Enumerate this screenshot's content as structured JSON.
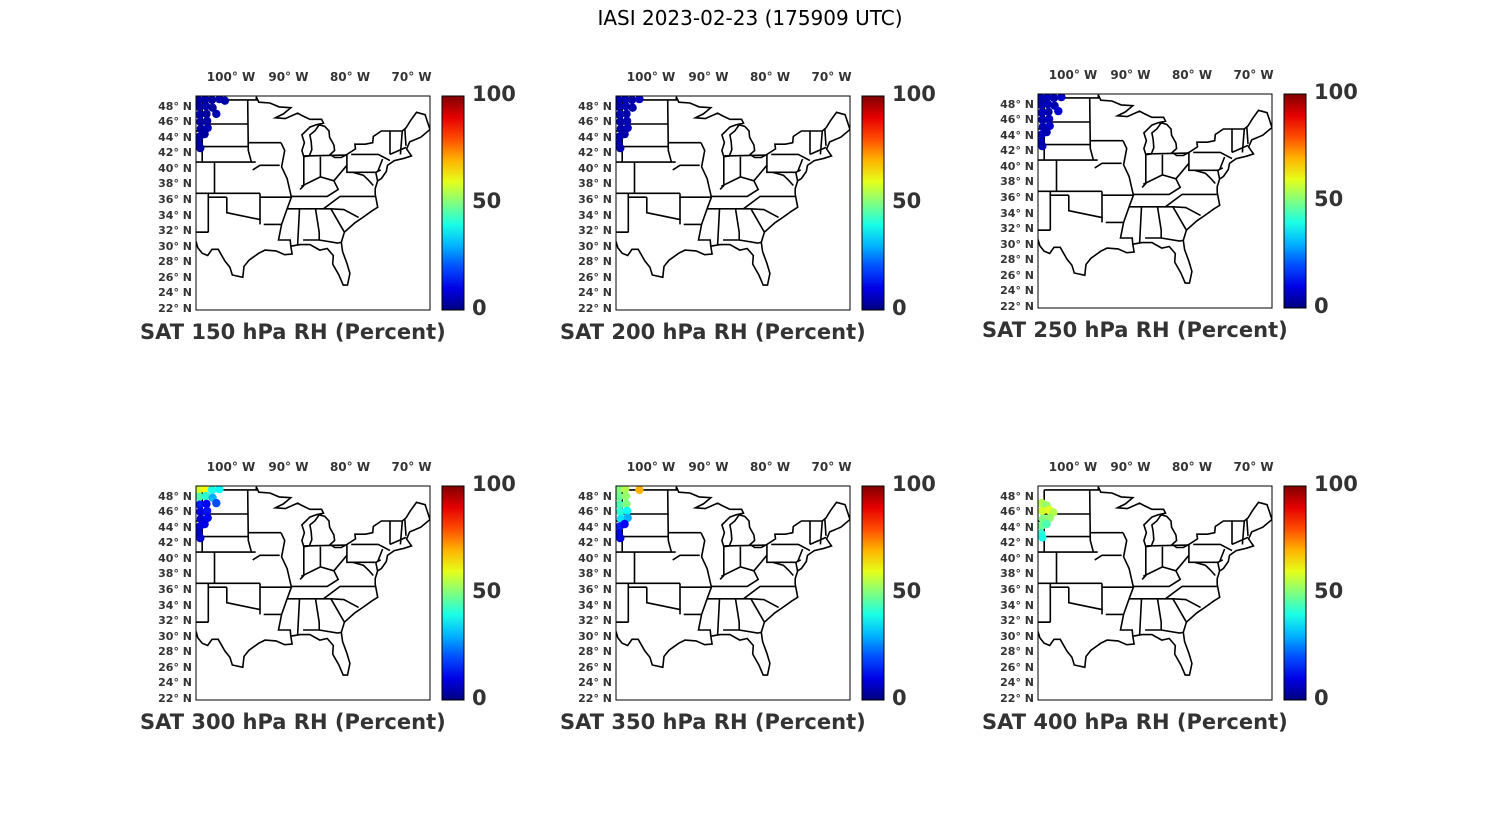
{
  "figure": {
    "title": "IASI 2023-02-23 (175909 UTC)"
  },
  "map_axes": {
    "lon_labels": [
      "100° W",
      "90° W",
      "80° W",
      "70° W"
    ],
    "lon_values": [
      -100,
      -90,
      -80,
      -70
    ],
    "lat_labels": [
      "48° N",
      "46° N",
      "44° N",
      "42° N",
      "40° N",
      "38° N",
      "36° N",
      "34° N",
      "32° N",
      "30° N",
      "28° N",
      "26° N",
      "24° N",
      "22° N"
    ],
    "lat_values": [
      48,
      46,
      44,
      42,
      40,
      38,
      36,
      34,
      32,
      30,
      28,
      26,
      24,
      22
    ],
    "lon_range": [
      -105,
      -67
    ],
    "lat_range": [
      22,
      49.5
    ]
  },
  "colorbar": {
    "colormap": "jet",
    "range": [
      0,
      100
    ],
    "tick_labels": [
      "100",
      "50",
      "0"
    ],
    "tick_values": [
      100,
      50,
      0
    ]
  },
  "panels": [
    {
      "caption": "SAT 150 hPa RH (Percent)",
      "points": [
        {
          "lon": -104.6,
          "lat": 49.0,
          "v": 3
        },
        {
          "lon": -103.5,
          "lat": 49.1,
          "v": 4
        },
        {
          "lon": -102.4,
          "lat": 49.0,
          "v": 3
        },
        {
          "lon": -101.2,
          "lat": 49.1,
          "v": 5
        },
        {
          "lon": -100.3,
          "lat": 48.9,
          "v": 4
        },
        {
          "lon": -104.5,
          "lat": 48.1,
          "v": 3
        },
        {
          "lon": -103.4,
          "lat": 48.2,
          "v": 4
        },
        {
          "lon": -102.3,
          "lat": 48.0,
          "v": 3
        },
        {
          "lon": -104.4,
          "lat": 47.1,
          "v": 4
        },
        {
          "lon": -103.3,
          "lat": 47.2,
          "v": 3
        },
        {
          "lon": -101.7,
          "lat": 47.2,
          "v": 5
        },
        {
          "lon": -104.3,
          "lat": 46.2,
          "v": 3
        },
        {
          "lon": -103.2,
          "lat": 46.3,
          "v": 4
        },
        {
          "lon": -104.2,
          "lat": 45.3,
          "v": 3
        },
        {
          "lon": -103.1,
          "lat": 45.4,
          "v": 5
        },
        {
          "lon": -104.4,
          "lat": 44.3,
          "v": 4
        },
        {
          "lon": -103.6,
          "lat": 44.6,
          "v": 3
        },
        {
          "lon": -104.6,
          "lat": 43.4,
          "v": 4
        },
        {
          "lon": -104.3,
          "lat": 42.8,
          "v": 3
        }
      ]
    },
    {
      "caption": "SAT 200 hPa RH (Percent)",
      "points": [
        {
          "lon": -104.6,
          "lat": 49.0,
          "v": 4
        },
        {
          "lon": -103.5,
          "lat": 49.1,
          "v": 5
        },
        {
          "lon": -102.4,
          "lat": 49.0,
          "v": 4
        },
        {
          "lon": -101.2,
          "lat": 49.1,
          "v": 6
        },
        {
          "lon": -104.5,
          "lat": 48.1,
          "v": 4
        },
        {
          "lon": -103.4,
          "lat": 48.2,
          "v": 5
        },
        {
          "lon": -102.3,
          "lat": 48.0,
          "v": 4
        },
        {
          "lon": -104.4,
          "lat": 47.1,
          "v": 5
        },
        {
          "lon": -103.3,
          "lat": 47.2,
          "v": 4
        },
        {
          "lon": -104.3,
          "lat": 46.2,
          "v": 4
        },
        {
          "lon": -103.2,
          "lat": 46.3,
          "v": 5
        },
        {
          "lon": -104.2,
          "lat": 45.3,
          "v": 4
        },
        {
          "lon": -103.1,
          "lat": 45.4,
          "v": 6
        },
        {
          "lon": -104.4,
          "lat": 44.3,
          "v": 5
        },
        {
          "lon": -103.6,
          "lat": 44.6,
          "v": 4
        },
        {
          "lon": -104.6,
          "lat": 43.4,
          "v": 5
        },
        {
          "lon": -104.3,
          "lat": 42.8,
          "v": 4
        }
      ]
    },
    {
      "caption": "SAT 250 hPa RH (Percent)",
      "points": [
        {
          "lon": -104.6,
          "lat": 49.0,
          "v": 5
        },
        {
          "lon": -103.5,
          "lat": 49.1,
          "v": 6
        },
        {
          "lon": -102.4,
          "lat": 49.0,
          "v": 5
        },
        {
          "lon": -101.2,
          "lat": 49.1,
          "v": 7
        },
        {
          "lon": -104.5,
          "lat": 48.1,
          "v": 5
        },
        {
          "lon": -103.4,
          "lat": 48.2,
          "v": 6
        },
        {
          "lon": -102.3,
          "lat": 48.0,
          "v": 5
        },
        {
          "lon": -104.4,
          "lat": 47.1,
          "v": 6
        },
        {
          "lon": -103.3,
          "lat": 47.2,
          "v": 5
        },
        {
          "lon": -101.7,
          "lat": 47.3,
          "v": 8
        },
        {
          "lon": -104.3,
          "lat": 46.2,
          "v": 5
        },
        {
          "lon": -103.2,
          "lat": 46.3,
          "v": 6
        },
        {
          "lon": -104.2,
          "lat": 45.3,
          "v": 5
        },
        {
          "lon": -103.1,
          "lat": 45.4,
          "v": 7
        },
        {
          "lon": -104.4,
          "lat": 44.3,
          "v": 6
        },
        {
          "lon": -103.6,
          "lat": 44.6,
          "v": 5
        },
        {
          "lon": -104.6,
          "lat": 43.4,
          "v": 6
        },
        {
          "lon": -104.3,
          "lat": 42.8,
          "v": 5
        }
      ]
    },
    {
      "caption": "SAT 300 hPa RH (Percent)",
      "points": [
        {
          "lon": -104.6,
          "lat": 49.0,
          "v": 58
        },
        {
          "lon": -103.5,
          "lat": 49.1,
          "v": 62
        },
        {
          "lon": -102.4,
          "lat": 49.0,
          "v": 40
        },
        {
          "lon": -101.2,
          "lat": 49.1,
          "v": 38
        },
        {
          "lon": -104.5,
          "lat": 48.1,
          "v": 45
        },
        {
          "lon": -103.4,
          "lat": 48.2,
          "v": 42
        },
        {
          "lon": -102.3,
          "lat": 48.0,
          "v": 30
        },
        {
          "lon": -104.4,
          "lat": 47.1,
          "v": 15
        },
        {
          "lon": -103.3,
          "lat": 47.2,
          "v": 12
        },
        {
          "lon": -101.7,
          "lat": 47.3,
          "v": 20
        },
        {
          "lon": -104.3,
          "lat": 46.2,
          "v": 10
        },
        {
          "lon": -103.2,
          "lat": 46.3,
          "v": 14
        },
        {
          "lon": -104.2,
          "lat": 45.3,
          "v": 8
        },
        {
          "lon": -103.1,
          "lat": 45.4,
          "v": 12
        },
        {
          "lon": -104.4,
          "lat": 44.3,
          "v": 9
        },
        {
          "lon": -103.6,
          "lat": 44.6,
          "v": 10
        },
        {
          "lon": -104.6,
          "lat": 43.4,
          "v": 8
        },
        {
          "lon": -104.3,
          "lat": 42.8,
          "v": 7
        }
      ]
    },
    {
      "caption": "SAT 350 hPa RH (Percent)",
      "points": [
        {
          "lon": -104.6,
          "lat": 49.0,
          "v": 50
        },
        {
          "lon": -103.5,
          "lat": 49.1,
          "v": 55
        },
        {
          "lon": -101.2,
          "lat": 49.0,
          "v": 70
        },
        {
          "lon": -104.5,
          "lat": 48.1,
          "v": 48
        },
        {
          "lon": -103.4,
          "lat": 48.2,
          "v": 52
        },
        {
          "lon": -104.4,
          "lat": 47.1,
          "v": 45
        },
        {
          "lon": -103.3,
          "lat": 47.2,
          "v": 50
        },
        {
          "lon": -104.3,
          "lat": 46.2,
          "v": 42
        },
        {
          "lon": -103.2,
          "lat": 46.3,
          "v": 38
        },
        {
          "lon": -104.2,
          "lat": 45.3,
          "v": 35
        },
        {
          "lon": -103.1,
          "lat": 45.4,
          "v": 30
        },
        {
          "lon": -104.4,
          "lat": 44.3,
          "v": 15
        },
        {
          "lon": -103.6,
          "lat": 44.6,
          "v": 12
        },
        {
          "lon": -104.6,
          "lat": 43.4,
          "v": 10
        },
        {
          "lon": -104.3,
          "lat": 42.8,
          "v": 9
        }
      ]
    },
    {
      "caption": "SAT 400 hPa RH (Percent)",
      "points": [
        {
          "lon": -104.4,
          "lat": 47.3,
          "v": 55
        },
        {
          "lon": -103.6,
          "lat": 47.0,
          "v": 52
        },
        {
          "lon": -104.3,
          "lat": 46.3,
          "v": 58
        },
        {
          "lon": -103.2,
          "lat": 46.4,
          "v": 60
        },
        {
          "lon": -102.5,
          "lat": 46.1,
          "v": 55
        },
        {
          "lon": -104.2,
          "lat": 45.3,
          "v": 50
        },
        {
          "lon": -103.1,
          "lat": 45.4,
          "v": 52
        },
        {
          "lon": -104.4,
          "lat": 44.4,
          "v": 48
        },
        {
          "lon": -103.6,
          "lat": 44.6,
          "v": 45
        },
        {
          "lon": -104.5,
          "lat": 43.4,
          "v": 42
        },
        {
          "lon": -104.3,
          "lat": 42.9,
          "v": 40
        }
      ]
    }
  ]
}
